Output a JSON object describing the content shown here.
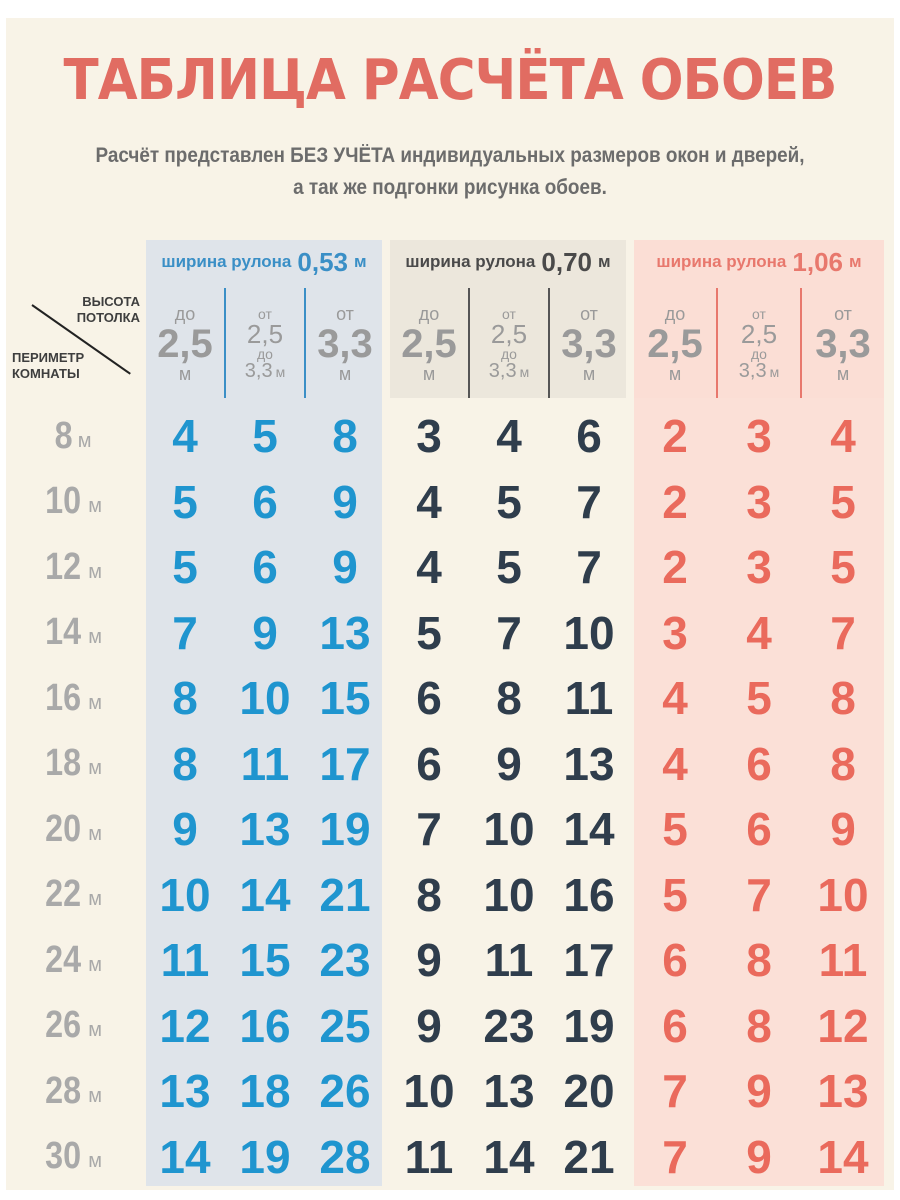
{
  "title": "ТАБЛИЦА РАСЧЁТА ОБОЕВ",
  "subtitle_line1": "Расчёт представлен БЕЗ УЧЁТА индивидуальных размеров окон и дверей,",
  "subtitle_line2": "а так же подгонки рисунка обоев.",
  "corner": {
    "height_label_1": "ВЫСОТА",
    "height_label_2": "ПОТОЛКА",
    "perimeter_label_1": "ПЕРИМЕТР",
    "perimeter_label_2": "КОМНАТЫ"
  },
  "groups": [
    {
      "label": "ширина рулона",
      "value": "0,53",
      "unit": "м",
      "color": "#3a8fc6"
    },
    {
      "label": "ширина рулона",
      "value": "0,70",
      "unit": "м",
      "color": "#4a4a4a"
    },
    {
      "label": "ширина рулона",
      "value": "1,06",
      "unit": "м",
      "color": "#e8786d"
    }
  ],
  "height_columns": [
    {
      "p1": "до",
      "p2": "2,5",
      "p3": "м"
    },
    {
      "p1": "от",
      "p2": "2,5",
      "p3": "до",
      "p4": "3,3",
      "p5": "м"
    },
    {
      "p1": "от",
      "p2": "3,3",
      "p3": "м"
    }
  ],
  "rows": [
    {
      "perimeter": "8",
      "unit": "м",
      "values": [
        "4",
        "5",
        "8",
        "3",
        "4",
        "6",
        "2",
        "3",
        "4"
      ]
    },
    {
      "perimeter": "10",
      "unit": "м",
      "values": [
        "5",
        "6",
        "9",
        "4",
        "5",
        "7",
        "2",
        "3",
        "5"
      ]
    },
    {
      "perimeter": "12",
      "unit": "м",
      "values": [
        "5",
        "6",
        "9",
        "4",
        "5",
        "7",
        "2",
        "3",
        "5"
      ]
    },
    {
      "perimeter": "14",
      "unit": "м",
      "values": [
        "7",
        "9",
        "13",
        "5",
        "7",
        "10",
        "3",
        "4",
        "7"
      ]
    },
    {
      "perimeter": "16",
      "unit": "м",
      "values": [
        "8",
        "10",
        "15",
        "6",
        "8",
        "11",
        "4",
        "5",
        "8"
      ]
    },
    {
      "perimeter": "18",
      "unit": "м",
      "values": [
        "8",
        "11",
        "17",
        "6",
        "9",
        "13",
        "4",
        "6",
        "8"
      ]
    },
    {
      "perimeter": "20",
      "unit": "м",
      "values": [
        "9",
        "13",
        "19",
        "7",
        "10",
        "14",
        "5",
        "6",
        "9"
      ]
    },
    {
      "perimeter": "22",
      "unit": "м",
      "values": [
        "10",
        "14",
        "21",
        "8",
        "10",
        "16",
        "5",
        "7",
        "10"
      ]
    },
    {
      "perimeter": "24",
      "unit": "м",
      "values": [
        "11",
        "15",
        "23",
        "9",
        "11",
        "17",
        "6",
        "8",
        "11"
      ]
    },
    {
      "perimeter": "26",
      "unit": "м",
      "values": [
        "12",
        "16",
        "25",
        "9",
        "23",
        "19",
        "6",
        "8",
        "12"
      ]
    },
    {
      "perimeter": "28",
      "unit": "м",
      "values": [
        "13",
        "18",
        "26",
        "10",
        "13",
        "20",
        "7",
        "9",
        "13"
      ]
    },
    {
      "perimeter": "30",
      "unit": "м",
      "values": [
        "14",
        "19",
        "28",
        "11",
        "14",
        "21",
        "7",
        "9",
        "14"
      ]
    }
  ]
}
